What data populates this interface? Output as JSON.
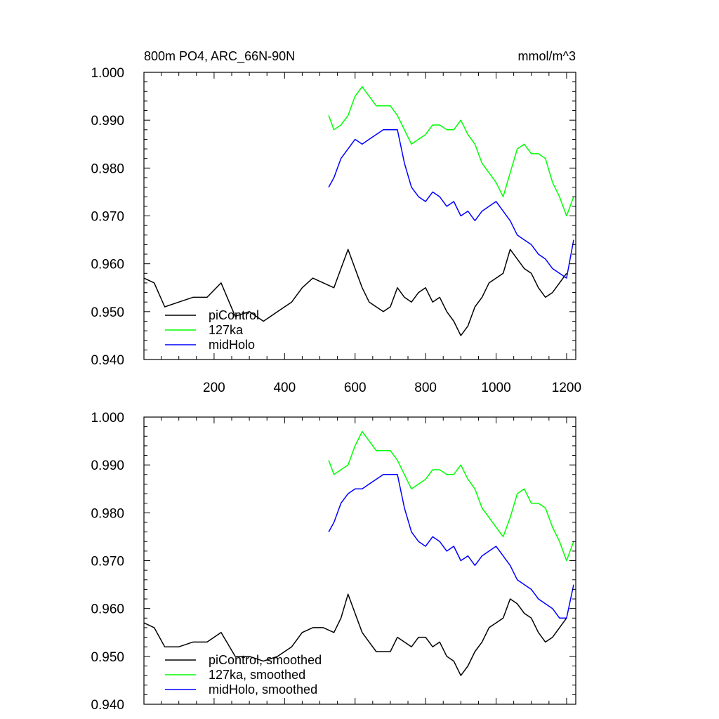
{
  "chart_data": [
    {
      "type": "line",
      "title": "800m PO4, ARC_66N-90N",
      "units": "mmol/m^3",
      "xlabel": "",
      "ylabel": "",
      "xlim": [
        1,
        1226
      ],
      "ylim": [
        0.94,
        1.0
      ],
      "xticks": [
        200,
        400,
        600,
        800,
        1000,
        1200
      ],
      "xtick_labels": [
        "200",
        "400",
        "600",
        "800",
        "1000",
        "1200"
      ],
      "yticks": [
        0.94,
        0.95,
        0.96,
        0.97,
        0.98,
        0.99,
        1.0
      ],
      "ytick_labels": [
        "0.940",
        "0.950",
        "0.960",
        "0.970",
        "0.980",
        "0.990",
        "1.000"
      ],
      "grid": false,
      "legend_position": "bottom-left",
      "series": [
        {
          "name": "piControl",
          "color": "#000000",
          "x": [
            1,
            30,
            60,
            100,
            140,
            180,
            220,
            260,
            300,
            340,
            380,
            420,
            450,
            480,
            510,
            540,
            560,
            580,
            600,
            620,
            640,
            660,
            680,
            700,
            720,
            740,
            760,
            780,
            800,
            820,
            840,
            860,
            880,
            900,
            920,
            940,
            960,
            980,
            1000,
            1020,
            1040,
            1060,
            1080,
            1100,
            1120,
            1140,
            1160,
            1180,
            1200
          ],
          "y": [
            0.957,
            0.956,
            0.951,
            0.952,
            0.953,
            0.953,
            0.956,
            0.949,
            0.95,
            0.948,
            0.95,
            0.952,
            0.955,
            0.957,
            0.956,
            0.955,
            0.959,
            0.963,
            0.959,
            0.955,
            0.952,
            0.951,
            0.95,
            0.951,
            0.955,
            0.953,
            0.952,
            0.954,
            0.955,
            0.952,
            0.953,
            0.95,
            0.948,
            0.945,
            0.947,
            0.951,
            0.953,
            0.956,
            0.957,
            0.958,
            0.963,
            0.961,
            0.959,
            0.958,
            0.955,
            0.953,
            0.954,
            0.956,
            0.958
          ]
        },
        {
          "name": "127ka",
          "color": "#00ff00",
          "x": [
            525,
            540,
            560,
            580,
            600,
            620,
            640,
            660,
            680,
            700,
            720,
            740,
            760,
            780,
            800,
            820,
            840,
            860,
            880,
            900,
            920,
            940,
            960,
            980,
            1000,
            1020,
            1040,
            1060,
            1080,
            1100,
            1120,
            1140,
            1160,
            1180,
            1200,
            1220
          ],
          "y": [
            0.991,
            0.988,
            0.989,
            0.991,
            0.995,
            0.997,
            0.995,
            0.993,
            0.993,
            0.993,
            0.991,
            0.988,
            0.985,
            0.986,
            0.987,
            0.989,
            0.989,
            0.988,
            0.988,
            0.99,
            0.987,
            0.985,
            0.981,
            0.979,
            0.977,
            0.974,
            0.979,
            0.984,
            0.985,
            0.983,
            0.983,
            0.982,
            0.977,
            0.974,
            0.97,
            0.974
          ]
        },
        {
          "name": "midHolo",
          "color": "#0000ff",
          "x": [
            525,
            540,
            560,
            580,
            600,
            620,
            640,
            660,
            680,
            700,
            720,
            740,
            760,
            780,
            800,
            820,
            840,
            860,
            880,
            900,
            920,
            940,
            960,
            980,
            1000,
            1020,
            1040,
            1060,
            1080,
            1100,
            1120,
            1140,
            1160,
            1180,
            1200,
            1220
          ],
          "y": [
            0.976,
            0.978,
            0.982,
            0.984,
            0.986,
            0.985,
            0.986,
            0.987,
            0.988,
            0.988,
            0.988,
            0.981,
            0.976,
            0.974,
            0.973,
            0.975,
            0.974,
            0.972,
            0.973,
            0.97,
            0.971,
            0.969,
            0.971,
            0.972,
            0.973,
            0.971,
            0.969,
            0.966,
            0.965,
            0.964,
            0.962,
            0.961,
            0.959,
            0.958,
            0.957,
            0.965
          ]
        }
      ]
    },
    {
      "type": "line",
      "title": "",
      "xlabel": "",
      "ylabel": "",
      "xlim": [
        1,
        1226
      ],
      "ylim": [
        0.94,
        1.0
      ],
      "xticks": [
        200,
        400,
        600,
        800,
        1000,
        1200
      ],
      "yticks": [
        0.94,
        0.95,
        0.96,
        0.97,
        0.98,
        0.99,
        1.0
      ],
      "ytick_labels": [
        "0.940",
        "0.950",
        "0.960",
        "0.970",
        "0.980",
        "0.990",
        "1.000"
      ],
      "grid": false,
      "legend_position": "bottom-left",
      "series": [
        {
          "name": "piControl, smoothed",
          "color": "#000000",
          "x": [
            1,
            30,
            60,
            100,
            140,
            180,
            220,
            260,
            300,
            340,
            380,
            420,
            450,
            480,
            510,
            540,
            560,
            580,
            600,
            620,
            640,
            660,
            680,
            700,
            720,
            740,
            760,
            780,
            800,
            820,
            840,
            860,
            880,
            900,
            920,
            940,
            960,
            980,
            1000,
            1020,
            1040,
            1060,
            1080,
            1100,
            1120,
            1140,
            1160,
            1180,
            1200
          ],
          "y": [
            0.957,
            0.956,
            0.952,
            0.952,
            0.953,
            0.953,
            0.955,
            0.95,
            0.95,
            0.949,
            0.95,
            0.952,
            0.955,
            0.956,
            0.956,
            0.955,
            0.958,
            0.963,
            0.959,
            0.955,
            0.953,
            0.951,
            0.951,
            0.951,
            0.954,
            0.953,
            0.952,
            0.954,
            0.954,
            0.952,
            0.953,
            0.95,
            0.949,
            0.946,
            0.948,
            0.951,
            0.953,
            0.956,
            0.957,
            0.958,
            0.962,
            0.961,
            0.959,
            0.958,
            0.955,
            0.953,
            0.954,
            0.956,
            0.958
          ]
        },
        {
          "name": "127ka, smoothed",
          "color": "#00ff00",
          "x": [
            525,
            540,
            560,
            580,
            600,
            620,
            640,
            660,
            680,
            700,
            720,
            740,
            760,
            780,
            800,
            820,
            840,
            860,
            880,
            900,
            920,
            940,
            960,
            980,
            1000,
            1020,
            1040,
            1060,
            1080,
            1100,
            1120,
            1140,
            1160,
            1180,
            1200,
            1220
          ],
          "y": [
            0.991,
            0.988,
            0.989,
            0.99,
            0.994,
            0.997,
            0.995,
            0.993,
            0.993,
            0.993,
            0.991,
            0.988,
            0.985,
            0.986,
            0.987,
            0.989,
            0.989,
            0.988,
            0.988,
            0.99,
            0.987,
            0.985,
            0.981,
            0.979,
            0.977,
            0.975,
            0.979,
            0.984,
            0.985,
            0.982,
            0.982,
            0.981,
            0.977,
            0.974,
            0.97,
            0.974
          ]
        },
        {
          "name": "midHolo, smoothed",
          "color": "#0000ff",
          "x": [
            525,
            540,
            560,
            580,
            600,
            620,
            640,
            660,
            680,
            700,
            720,
            740,
            760,
            780,
            800,
            820,
            840,
            860,
            880,
            900,
            920,
            940,
            960,
            980,
            1000,
            1020,
            1040,
            1060,
            1080,
            1100,
            1120,
            1140,
            1160,
            1180,
            1200,
            1220
          ],
          "y": [
            0.976,
            0.978,
            0.982,
            0.984,
            0.985,
            0.985,
            0.986,
            0.987,
            0.988,
            0.988,
            0.988,
            0.981,
            0.976,
            0.974,
            0.973,
            0.975,
            0.974,
            0.972,
            0.973,
            0.97,
            0.971,
            0.969,
            0.971,
            0.972,
            0.973,
            0.971,
            0.969,
            0.966,
            0.965,
            0.964,
            0.962,
            0.961,
            0.96,
            0.958,
            0.958,
            0.965
          ]
        }
      ]
    }
  ]
}
